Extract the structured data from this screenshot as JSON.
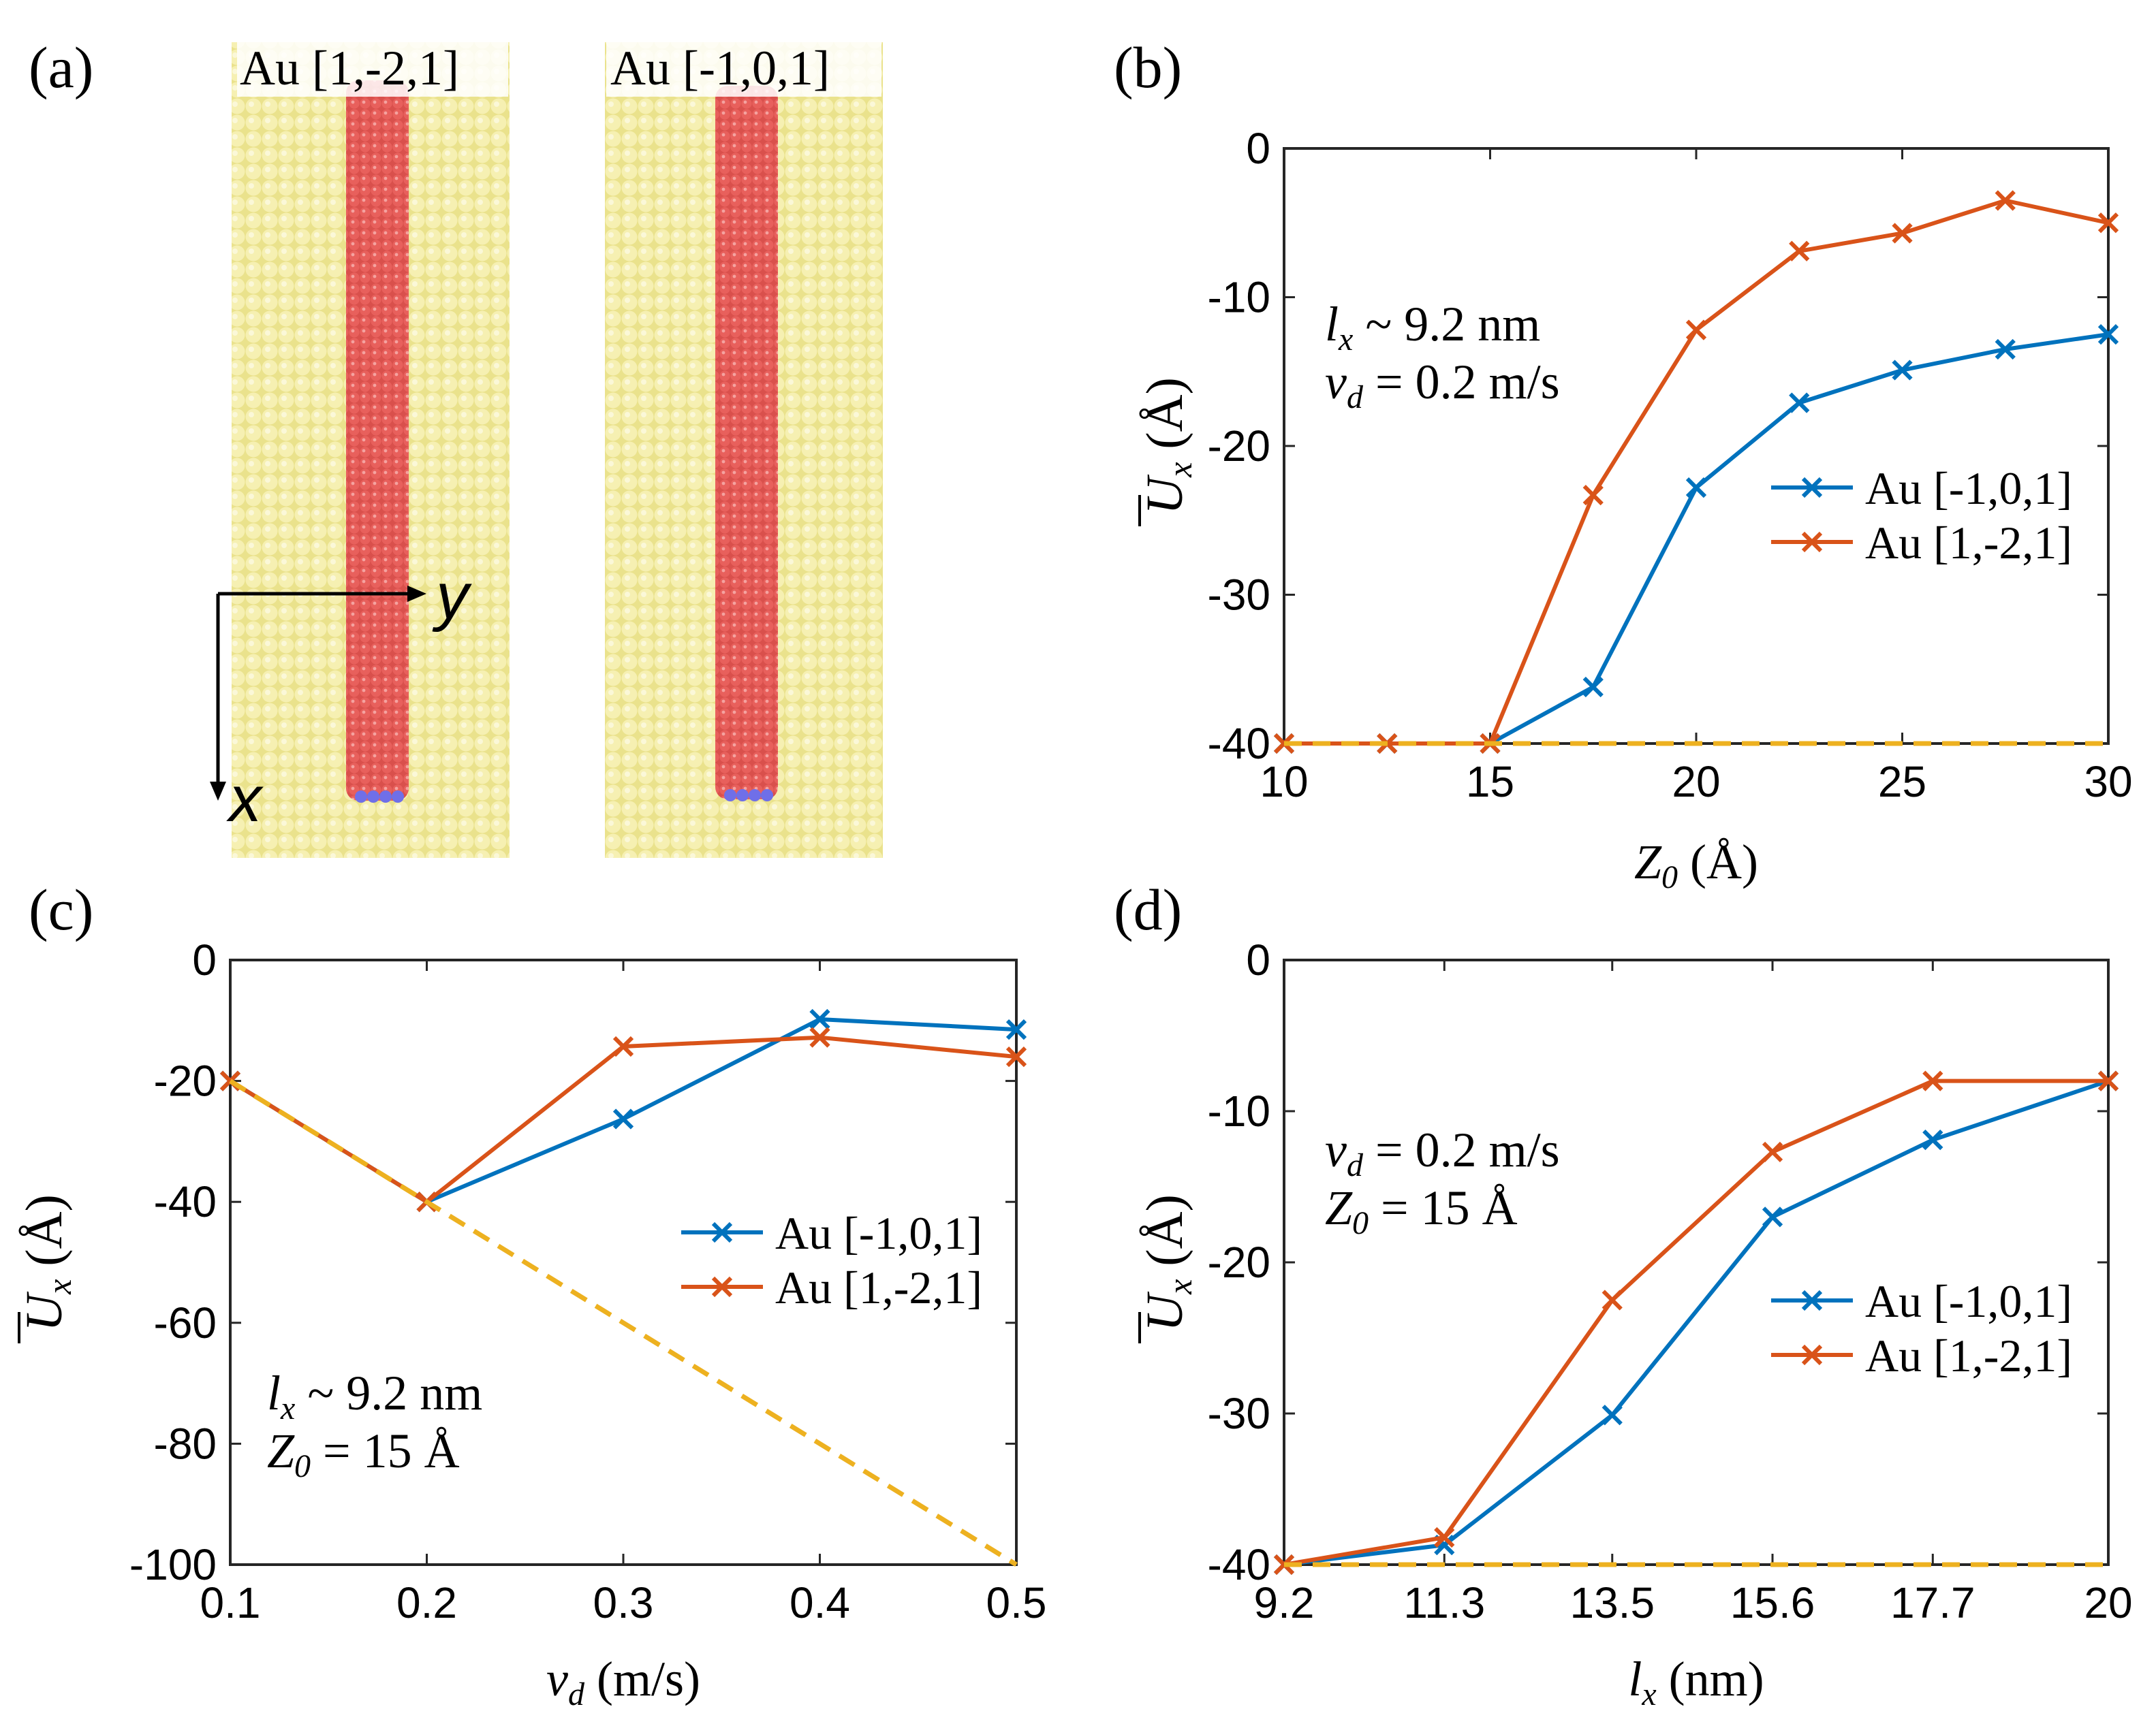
{
  "colors": {
    "series_101": "#0072BD",
    "series_121": "#D95319",
    "reference": "#EDB120",
    "gold_atom": "#F3EDA0",
    "red_atom": "#E8605C",
    "blue_atom": "#6F6FE8"
  },
  "panel_a": {
    "label": "(a)",
    "left_title": "Au [1,-2,1]",
    "right_title": "Au [-1,0,1]",
    "axis_y_label": "y",
    "axis_x_label": "x"
  },
  "chart_data": [
    {
      "panel": "(b)",
      "type": "line",
      "xlabel": "Z0 (Å)",
      "xlabel_main": "Z",
      "xlabel_sub": "0",
      "xlabel_unit": " (Å)",
      "ylabel": "Ux (Å)",
      "ylabel_main": "U",
      "ylabel_sub": "x",
      "ylabel_unit": " (Å)",
      "xlim": [
        10,
        30
      ],
      "ylim": [
        -40,
        0
      ],
      "xticks": [
        10,
        15,
        20,
        25,
        30
      ],
      "xtick_labels": [
        "10",
        "15",
        "20",
        "25",
        "30"
      ],
      "yticks": [
        -40,
        -30,
        -20,
        -10,
        0
      ],
      "ytick_labels": [
        "-40",
        "-30",
        "-20",
        "-10",
        "0"
      ],
      "legend_position": "center-right",
      "annotations": [
        {
          "main": "l",
          "sub": "x",
          "rest": " ~ 9.2 nm"
        },
        {
          "main": "v",
          "sub": "d",
          "rest": " = 0.2 m/s"
        }
      ],
      "series": [
        {
          "name": "Au [-1,0,1]",
          "color": "#0072BD",
          "marker": "x",
          "x": [
            10,
            12.5,
            15,
            17.5,
            20,
            22.5,
            25,
            27.5,
            30
          ],
          "y": [
            -40,
            -40,
            -40,
            -36.2,
            -22.8,
            -17.1,
            -14.9,
            -13.5,
            -12.5
          ]
        },
        {
          "name": "Au [1,-2,1]",
          "color": "#D95319",
          "marker": "x",
          "x": [
            10,
            12.5,
            15,
            17.5,
            20,
            22.5,
            25,
            27.5,
            30
          ],
          "y": [
            -40,
            -40,
            -40,
            -23.3,
            -12.2,
            -6.9,
            -5.7,
            -3.5,
            -5.0
          ]
        },
        {
          "name": "",
          "color": "#EDB120",
          "dashed": true,
          "x": [
            10,
            30
          ],
          "y": [
            -40,
            -40
          ]
        }
      ]
    },
    {
      "panel": "(c)",
      "type": "line",
      "xlabel": "vd (m/s)",
      "xlabel_main": "v",
      "xlabel_sub": "d",
      "xlabel_unit": " (m/s)",
      "ylabel": "Ux (Å)",
      "ylabel_main": "U",
      "ylabel_sub": "x",
      "ylabel_unit": " (Å)",
      "xlim": [
        0.1,
        0.5
      ],
      "ylim": [
        -100,
        0
      ],
      "xticks": [
        0.1,
        0.2,
        0.3,
        0.4,
        0.5
      ],
      "xtick_labels": [
        "0.1",
        "0.2",
        "0.3",
        "0.4",
        "0.5"
      ],
      "yticks": [
        -100,
        -80,
        -60,
        -40,
        -20,
        0
      ],
      "ytick_labels": [
        "-100",
        "-80",
        "-60",
        "-40",
        "-20",
        "0"
      ],
      "legend_position": "center-right",
      "annotations": [
        {
          "main": "l",
          "sub": "x",
          "rest": " ~ 9.2 nm"
        },
        {
          "main": "Z",
          "sub": "0",
          "rest": " = 15 Å"
        }
      ],
      "series": [
        {
          "name": "Au [-1,0,1]",
          "color": "#0072BD",
          "marker": "x",
          "x": [
            0.1,
            0.2,
            0.3,
            0.4,
            0.5
          ],
          "y": [
            -20,
            -40,
            -26.3,
            -9.8,
            -11.5
          ]
        },
        {
          "name": "Au [1,-2,1]",
          "color": "#D95319",
          "marker": "x",
          "x": [
            0.1,
            0.2,
            0.3,
            0.4,
            0.5
          ],
          "y": [
            -20,
            -40,
            -14.3,
            -12.8,
            -16.0
          ]
        },
        {
          "name": "",
          "color": "#EDB120",
          "dashed": true,
          "x": [
            0.1,
            0.2,
            0.3,
            0.4,
            0.5
          ],
          "y": [
            -20,
            -40,
            -60,
            -80,
            -100
          ]
        }
      ]
    },
    {
      "panel": "(d)",
      "type": "line",
      "xlabel": "lx (nm)",
      "xlabel_main": "l",
      "xlabel_sub": "x",
      "xlabel_unit": " (nm)",
      "ylabel": "Ux (Å)",
      "ylabel_main": "U",
      "ylabel_sub": "x",
      "ylabel_unit": " (Å)",
      "xlim": [
        9.2,
        20
      ],
      "ylim": [
        -40,
        0
      ],
      "xticks": [
        9.2,
        11.3,
        13.5,
        15.6,
        17.7,
        20
      ],
      "xtick_labels": [
        "9.2",
        "11.3",
        "13.5",
        "15.6",
        "17.7",
        "20"
      ],
      "yticks": [
        -40,
        -30,
        -20,
        -10,
        0
      ],
      "ytick_labels": [
        "-40",
        "-30",
        "-20",
        "-10",
        "0"
      ],
      "legend_position": "center-right",
      "annotations": [
        {
          "main": "v",
          "sub": "d",
          "rest": " = 0.2 m/s"
        },
        {
          "main": "Z",
          "sub": "0",
          "rest": " = 15 Å"
        }
      ],
      "series": [
        {
          "name": "Au [-1,0,1]",
          "color": "#0072BD",
          "marker": "x",
          "x": [
            9.2,
            11.3,
            13.5,
            15.6,
            17.7,
            20
          ],
          "y": [
            -40,
            -38.7,
            -30.1,
            -17.0,
            -11.9,
            -8.0
          ]
        },
        {
          "name": "Au [1,-2,1]",
          "color": "#D95319",
          "marker": "x",
          "x": [
            9.2,
            11.3,
            13.5,
            15.6,
            17.7,
            20
          ],
          "y": [
            -40,
            -38.2,
            -22.5,
            -12.7,
            -8.0,
            -8.0
          ]
        },
        {
          "name": "",
          "color": "#EDB120",
          "dashed": true,
          "x": [
            9.2,
            20
          ],
          "y": [
            -40,
            -40
          ]
        }
      ]
    }
  ]
}
